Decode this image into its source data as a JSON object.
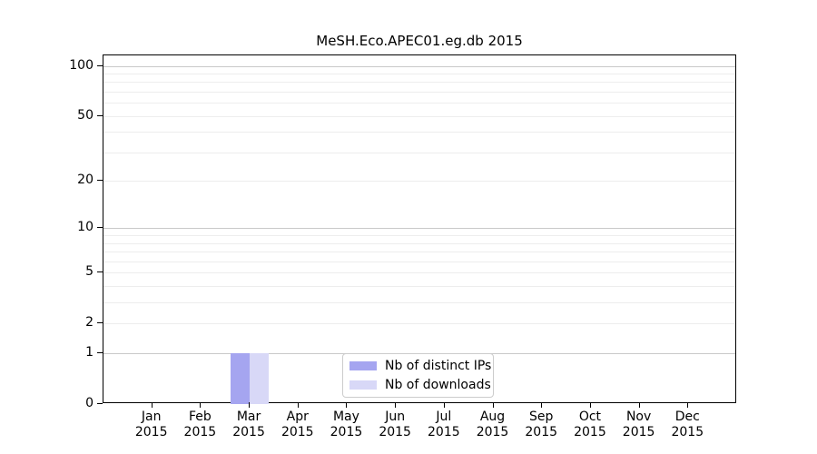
{
  "chart_data": {
    "type": "bar",
    "title": "MeSH.Eco.APEC01.eg.db 2015",
    "categories": [
      "Jan",
      "Feb",
      "Mar",
      "Apr",
      "May",
      "Jun",
      "Jul",
      "Aug",
      "Sep",
      "Oct",
      "Nov",
      "Dec"
    ],
    "category_year": "2015",
    "series": [
      {
        "name": "Nb of distinct IPs",
        "color": "#a5a5f0",
        "values": [
          0,
          0,
          1,
          0,
          0,
          0,
          0,
          0,
          0,
          0,
          0,
          0
        ]
      },
      {
        "name": "Nb of downloads",
        "color": "#d8d8f7",
        "values": [
          0,
          0,
          1,
          0,
          0,
          0,
          0,
          0,
          0,
          0,
          0,
          0
        ]
      }
    ],
    "xlabel": "",
    "ylabel": "",
    "yscale": "log1p",
    "ylim": [
      0,
      100
    ],
    "yticks": [
      0,
      1,
      2,
      5,
      10,
      20,
      50,
      100
    ],
    "gridlines": {
      "major": [
        1,
        10,
        100
      ],
      "minor": [
        2,
        3,
        4,
        5,
        6,
        7,
        8,
        9,
        20,
        30,
        40,
        50,
        60,
        70,
        80,
        90
      ]
    },
    "grid": true,
    "legend_position": "bottom-center"
  },
  "colors": {
    "axis": "#000000",
    "text": "#000000",
    "grid_major": "#c9c9c9",
    "grid_minor": "#ededed",
    "legend_border": "#cccccc",
    "plot_background": "#ffffff"
  }
}
